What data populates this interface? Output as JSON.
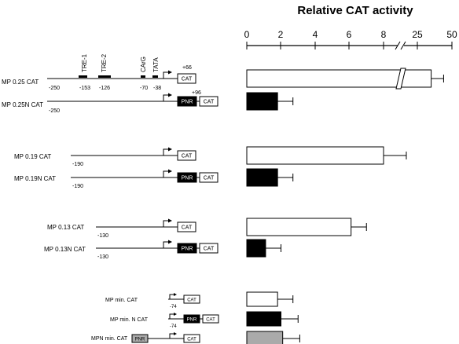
{
  "title": "Relative CAT activity",
  "axis": {
    "ticks": [
      "0",
      "2",
      "4",
      "6",
      "8",
      "25",
      "50"
    ],
    "break_after": "8"
  },
  "elements": {
    "tre1": "TRE-1",
    "tre2": "TRE-2",
    "cargg": "CArG",
    "tata": "TATA",
    "cat": "CAT",
    "pnr": "PNR"
  },
  "constructs": [
    {
      "name": "MP 0.25 CAT",
      "start_label": "-250",
      "pos_labels": [
        "-153",
        "-126",
        "-70",
        "-38"
      ],
      "end_label": "+66",
      "value": 35,
      "fill": "#ffffff",
      "error": 9
    },
    {
      "name": "MP 0.25N CAT",
      "start_label": "-250",
      "pnr_label": "+96",
      "value": 1.8,
      "fill": "#000000",
      "error": 0.9
    },
    {
      "name": "MP 0.19 CAT",
      "start_label": "-190",
      "value": 8.0,
      "fill": "#ffffff",
      "error": 1.1
    },
    {
      "name": "MP 0.19N CAT",
      "start_label": "-190",
      "value": 1.8,
      "fill": "#000000",
      "error": 0.9
    },
    {
      "name": "MP 0.13 CAT",
      "start_label": "-130",
      "value": 6.1,
      "fill": "#ffffff",
      "error": 0.9
    },
    {
      "name": "MP 0.13N CAT",
      "start_label": "-130",
      "value": 1.1,
      "fill": "#000000",
      "error": 0.9
    },
    {
      "name": "MP min. CAT",
      "start_label": "-74",
      "value": 1.8,
      "fill": "#ffffff",
      "error": 0.9
    },
    {
      "name": "MP min. N CAT",
      "start_label": "-74",
      "value": 2.0,
      "fill": "#000000",
      "error": 1.0
    },
    {
      "name": "MPN min. CAT",
      "value": 2.1,
      "fill": "#aaaaaa",
      "error": 1.0
    }
  ]
}
